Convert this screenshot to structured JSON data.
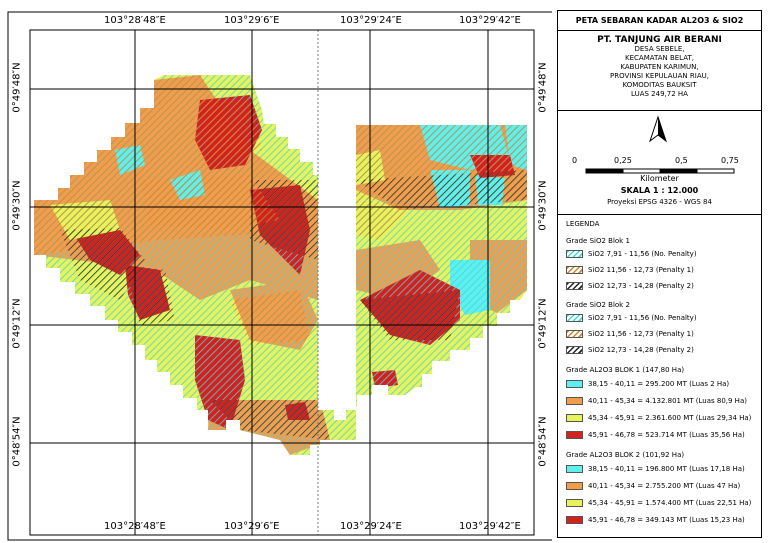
{
  "map": {
    "coords_top": [
      "103°28′48″E",
      "103°29′6″E",
      "103°29′24″E",
      "103°29′42″E"
    ],
    "coords_bottom": [
      "103°28′48″E",
      "103°29′6″E",
      "103°29′24″E",
      "103°29′42″E"
    ],
    "coords_left": [
      "0°49′48″N",
      "0°49′30″N",
      "0°49′12″N",
      "0°48′54″N"
    ],
    "coords_right": [
      "0°49′48″N",
      "0°49′30″N",
      "0°49′12″N",
      "0°48′54″N"
    ],
    "colors": {
      "cyan": "#5ff0ee",
      "orange": "#f29d4c",
      "yellow": "#e8f25a",
      "red": "#d5211d",
      "hatch_cyan": "#3ed6e2",
      "hatch_orange": "#d9822b",
      "hatch_black": "#222222"
    }
  },
  "title": {
    "heading": "PETA SEBARAN KADAR AL2O3 & SIO2",
    "company": "PT. TANJUNG AIR BERANI",
    "lines": [
      "DESA SEBELE,",
      "KECAMATAN BELAT,",
      "KABUPATEN KARIMUN,",
      "PROVINSI KEPULAUAN RIAU,",
      "KOMODITAS BAUKSIT",
      "LUAS 249,72 HA"
    ]
  },
  "scale": {
    "ticks": [
      "0",
      "0,25",
      "0,5",
      "0,75"
    ],
    "unit": "Kilometer",
    "ratio": "SKALA 1 : 12.000",
    "projection": "Proyeksi EPSG 4326 - WGS 84"
  },
  "legend": {
    "title": "LEGENDA",
    "groups": [
      {
        "heading": "Grade SiO2 Blok 1",
        "items": [
          {
            "label": "SiO2 7,91 - 11,56 (No. Penalty)",
            "style": "hatch-cyan"
          },
          {
            "label": "SiO2 11,56 - 12,73 (Penalty 1)",
            "style": "hatch-orange"
          },
          {
            "label": "SiO2 12,73 - 14,28 (Penalty 2)",
            "style": "hatch-black"
          }
        ]
      },
      {
        "heading": "Grade SiO2 Blok 2",
        "items": [
          {
            "label": "SiO2 7,91 - 11,56 (No. Penalty)",
            "style": "hatch-cyan"
          },
          {
            "label": "SiO2 11,56 - 12,73 (Penalty 1)",
            "style": "hatch-orange"
          },
          {
            "label": "SiO2 12,73 - 14,28 (Penalty 2)",
            "style": "hatch-black"
          }
        ]
      },
      {
        "heading": "Grade AL2O3 BLOK 1 (147,80 Ha)",
        "items": [
          {
            "label": "38,15 - 40,11 = 295.200 MT (Luas 2 Ha)",
            "style": "cyan"
          },
          {
            "label": "40,11 - 45,34 = 4.132.801 MT (Luas 80,9 Ha)",
            "style": "orange"
          },
          {
            "label": "45,34 - 45,91 = 2.361.600 MT (Luas 29,34 Ha)",
            "style": "yellow"
          },
          {
            "label": "45,91 - 46,78 = 523.714 MT (Luas 35,56 Ha)",
            "style": "red"
          }
        ]
      },
      {
        "heading": "Grade AL2O3 BLOK 2 (101,92 Ha)",
        "items": [
          {
            "label": "38,15 - 40,11 = 196.800 MT (Luas 17,18 Ha)",
            "style": "cyan"
          },
          {
            "label": "40,11 - 45,34 = 2.755.200 MT (Luas 47 Ha)",
            "style": "orange"
          },
          {
            "label": "45,34 - 45,91 = 1.574.400 MT (Luas 22,51 Ha)",
            "style": "yellow"
          },
          {
            "label": "45,91 - 46,78 = 349.143 MT (Luas 15,23 Ha)",
            "style": "red"
          }
        ]
      }
    ]
  }
}
